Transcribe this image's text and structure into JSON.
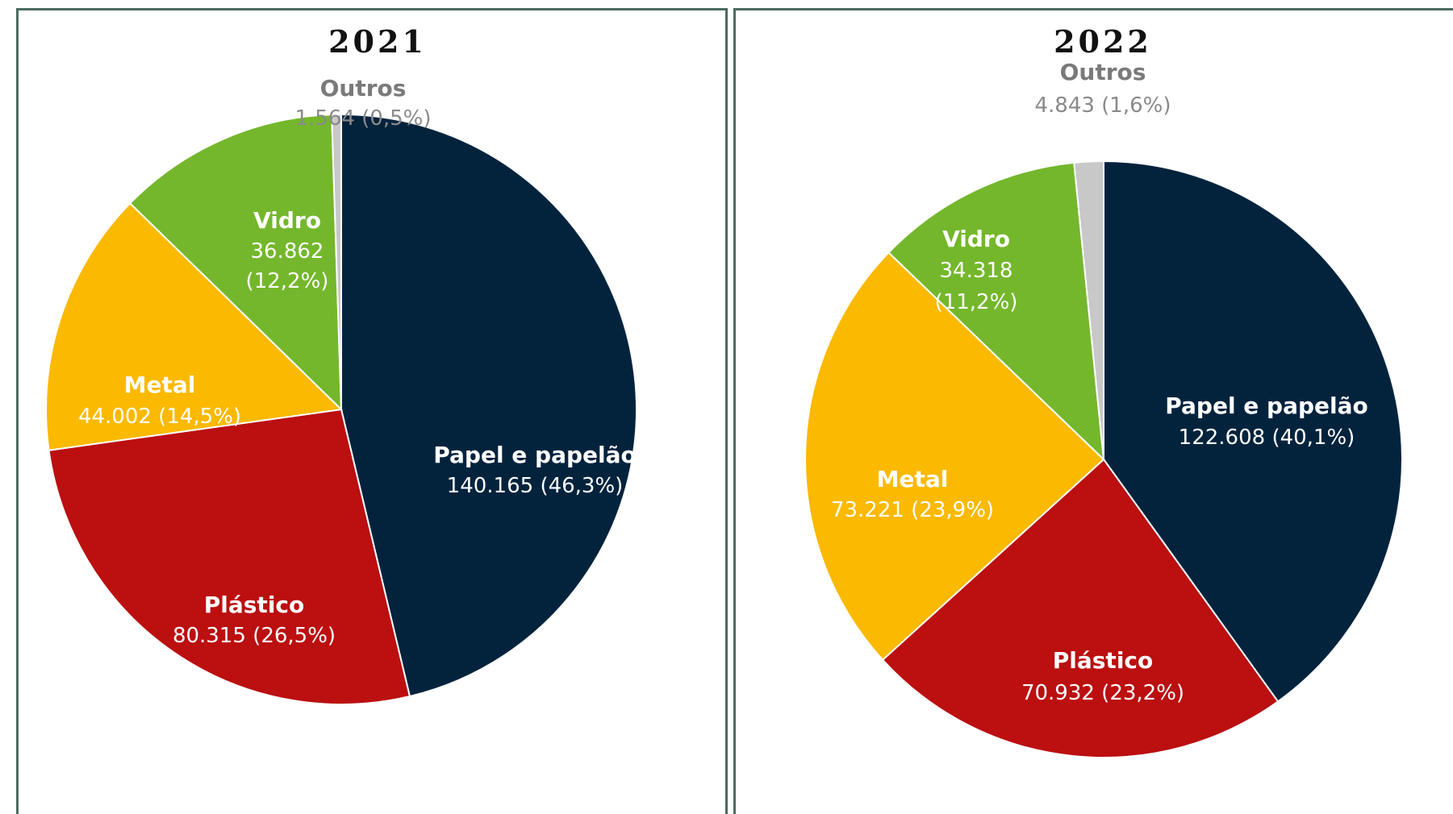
{
  "chart_data": [
    {
      "type": "pie",
      "title": "2021",
      "slices": [
        {
          "label": "Papel e papelão",
          "value_text": "140.165 (46,3%)",
          "value": 140165,
          "percent": 46.3,
          "color": "#03233d"
        },
        {
          "label": "Plástico",
          "value_text": "80.315 (26,5%)",
          "value": 80315,
          "percent": 26.5,
          "color": "#bb0f10"
        },
        {
          "label": "Metal",
          "value_text": "44.002 (14,5%)",
          "value": 44002,
          "percent": 14.5,
          "color": "#fbb900"
        },
        {
          "label": "Vidro",
          "value_text": "36.862",
          "value_text_2": "(12,2%)",
          "value": 36862,
          "percent": 12.2,
          "color": "#74b72c"
        },
        {
          "label": "Outros",
          "value_text": "1.564 (0,5%)",
          "value": 1564,
          "percent": 0.5,
          "color": "#c8c8c8"
        }
      ]
    },
    {
      "type": "pie",
      "title": "2022",
      "slices": [
        {
          "label": "Papel e papelão",
          "value_text": "122.608 (40,1%)",
          "value": 122608,
          "percent": 40.1,
          "color": "#03233d"
        },
        {
          "label": "Plástico",
          "value_text": "70.932 (23,2%)",
          "value": 70932,
          "percent": 23.2,
          "color": "#bb0f10"
        },
        {
          "label": "Metal",
          "value_text": "73.221 (23,9%)",
          "value": 73221,
          "percent": 23.9,
          "color": "#fbb900"
        },
        {
          "label": "Vidro",
          "value_text": "34.318",
          "value_text_2": "(11,2%)",
          "value": 34318,
          "percent": 11.2,
          "color": "#74b72c"
        },
        {
          "label": "Outros",
          "value_text": "4.843 (1,6%)",
          "value": 4843,
          "percent": 1.6,
          "color": "#c8c8c8"
        }
      ]
    }
  ]
}
